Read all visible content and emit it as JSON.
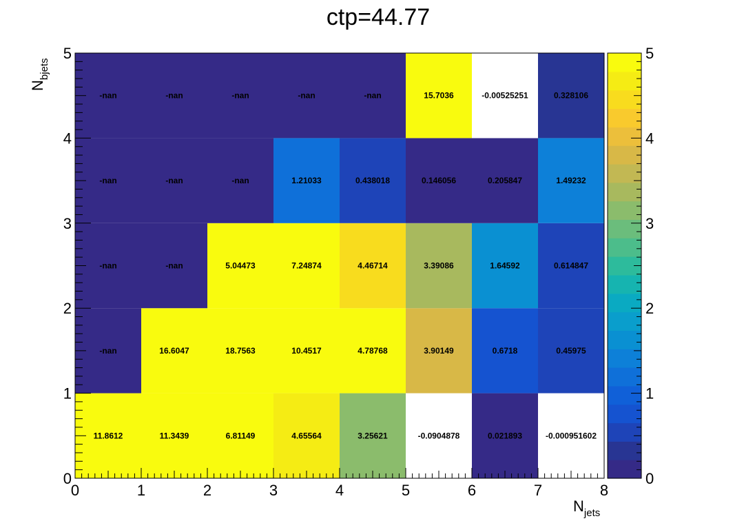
{
  "chart_data": {
    "type": "heatmap",
    "title": "ctp=44.77",
    "xlabel": {
      "main": "N",
      "sub": "jets"
    },
    "ylabel": {
      "main": "N",
      "sub": "bjets"
    },
    "xlim": [
      0,
      8
    ],
    "ylim": [
      0,
      5
    ],
    "x_ticks": [
      "0",
      "1",
      "2",
      "3",
      "4",
      "5",
      "6",
      "7",
      "8"
    ],
    "y_ticks": [
      "0",
      "1",
      "2",
      "3",
      "4",
      "5"
    ],
    "z_range": [
      0,
      5
    ],
    "z_ticks": [
      "0",
      "1",
      "2",
      "3",
      "4",
      "5"
    ],
    "colorscale": [
      "#352a87",
      "#283593",
      "#1e44b8",
      "#1553d0",
      "#1060d8",
      "#0f70d9",
      "#0d80d8",
      "#0a90d2",
      "#0a9ecc",
      "#0aaac2",
      "#16b4b0",
      "#2dbb9c",
      "#4cbd8b",
      "#6bbd7c",
      "#8bbc6c",
      "#a8b95e",
      "#c2b853",
      "#d8b847",
      "#ecbf3b",
      "#f9ca2d",
      "#f8dc1e",
      "#f5ec14",
      "#f9fb0e"
    ],
    "x_bins": [
      0,
      1,
      2,
      3,
      4,
      5,
      6,
      7
    ],
    "y_bins": [
      0,
      1,
      2,
      3,
      4
    ],
    "values": [
      [
        11.8612,
        11.3439,
        6.81149,
        4.65564,
        3.25621,
        -0.0904878,
        0.021893,
        -0.000951602
      ],
      [
        null,
        16.6047,
        18.7563,
        10.4517,
        4.78768,
        3.90149,
        0.6718,
        0.45975
      ],
      [
        null,
        null,
        5.04473,
        7.24874,
        4.46714,
        3.39086,
        1.64592,
        0.614847
      ],
      [
        null,
        null,
        null,
        1.21033,
        0.438018,
        0.146056,
        0.205847,
        1.49232
      ],
      [
        null,
        null,
        null,
        null,
        null,
        15.7036,
        -0.00525251,
        0.328106
      ]
    ],
    "labels": [
      [
        "11.8612",
        "11.3439",
        "6.81149",
        "4.65564",
        "3.25621",
        "-0.0904878",
        "0.021893",
        "-0.000951602"
      ],
      [
        "-nan",
        "16.6047",
        "18.7563",
        "10.4517",
        "4.78768",
        "3.90149",
        "0.6718",
        "0.45975"
      ],
      [
        "-nan",
        "-nan",
        "5.04473",
        "7.24874",
        "4.46714",
        "3.39086",
        "1.64592",
        "0.614847"
      ],
      [
        "-nan",
        "-nan",
        "-nan",
        "1.21033",
        "0.438018",
        "0.146056",
        "0.205847",
        "1.49232"
      ],
      [
        "-nan",
        "-nan",
        "-nan",
        "-nan",
        "-nan",
        "15.7036",
        "-0.00525251",
        "0.328106"
      ]
    ],
    "underflow_color": "#ffffff",
    "nan_color": "#352a87"
  }
}
